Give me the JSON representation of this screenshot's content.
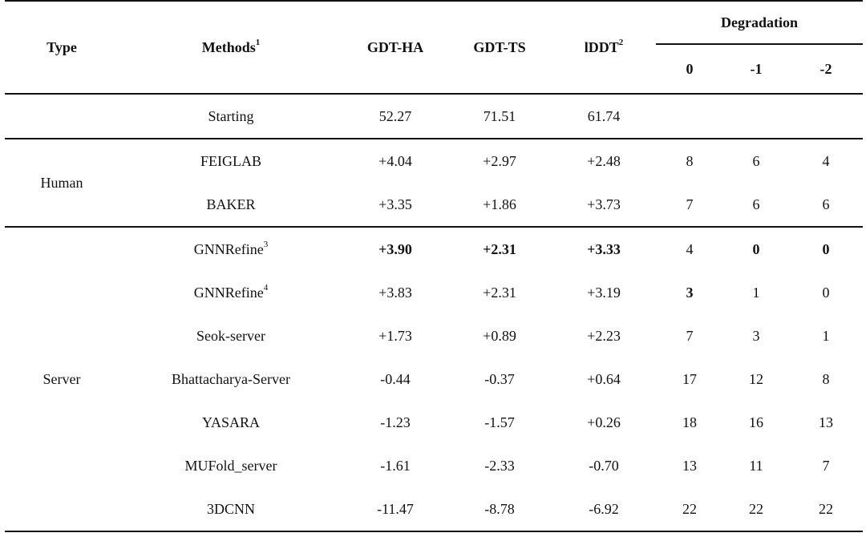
{
  "headers": {
    "type": "Type",
    "methods": "Methods",
    "methods_sup": "1",
    "gdt_ha": "GDT-HA",
    "gdt_ts": "GDT-TS",
    "lddt": "lDDT",
    "lddt_sup": "2",
    "degradation": "Degradation",
    "deg_0": "0",
    "deg_1": "-1",
    "deg_2": "-2"
  },
  "starting": {
    "method": "Starting",
    "gdt_ha": "52.27",
    "gdt_ts": "71.51",
    "lddt": "61.74"
  },
  "groups": [
    {
      "type": "Human",
      "rows": [
        {
          "method": "FEIGLAB",
          "sup": "",
          "gdt_ha": "+4.04",
          "gdt_ts": "+2.97",
          "lddt": "+2.48",
          "d0": "8",
          "d1": "6",
          "d2": "4"
        },
        {
          "method": "BAKER",
          "sup": "",
          "gdt_ha": "+3.35",
          "gdt_ts": "+1.86",
          "lddt": "+3.73",
          "d0": "7",
          "d1": "6",
          "d2": "6"
        }
      ]
    },
    {
      "type": "Server",
      "rows": [
        {
          "method": "GNNRefine",
          "sup": "3",
          "gdt_ha": "+3.90",
          "gdt_ts": "+2.31",
          "lddt": "+3.33",
          "d0": "4",
          "d1": "0",
          "d2": "0"
        },
        {
          "method": "GNNRefine",
          "sup": "4",
          "gdt_ha": "+3.83",
          "gdt_ts": "+2.31",
          "lddt": "+3.19",
          "d0": "3",
          "d1": "1",
          "d2": "0"
        },
        {
          "method": "Seok-server",
          "sup": "",
          "gdt_ha": "+1.73",
          "gdt_ts": "+0.89",
          "lddt": "+2.23",
          "d0": "7",
          "d1": "3",
          "d2": "1"
        },
        {
          "method": "Bhattacharya-Server",
          "sup": "",
          "gdt_ha": "-0.44",
          "gdt_ts": "-0.37",
          "lddt": "+0.64",
          "d0": "17",
          "d1": "12",
          "d2": "8"
        },
        {
          "method": "YASARA",
          "sup": "",
          "gdt_ha": "-1.23",
          "gdt_ts": "-1.57",
          "lddt": "+0.26",
          "d0": "18",
          "d1": "16",
          "d2": "13"
        },
        {
          "method": "MUFold_server",
          "sup": "",
          "gdt_ha": "-1.61",
          "gdt_ts": "-2.33",
          "lddt": "-0.70",
          "d0": "13",
          "d1": "11",
          "d2": "7"
        },
        {
          "method": "3DCNN",
          "sup": "",
          "gdt_ha": "-11.47",
          "gdt_ts": "-8.78",
          "lddt": "-6.92",
          "d0": "22",
          "d1": "22",
          "d2": "22"
        }
      ]
    }
  ]
}
